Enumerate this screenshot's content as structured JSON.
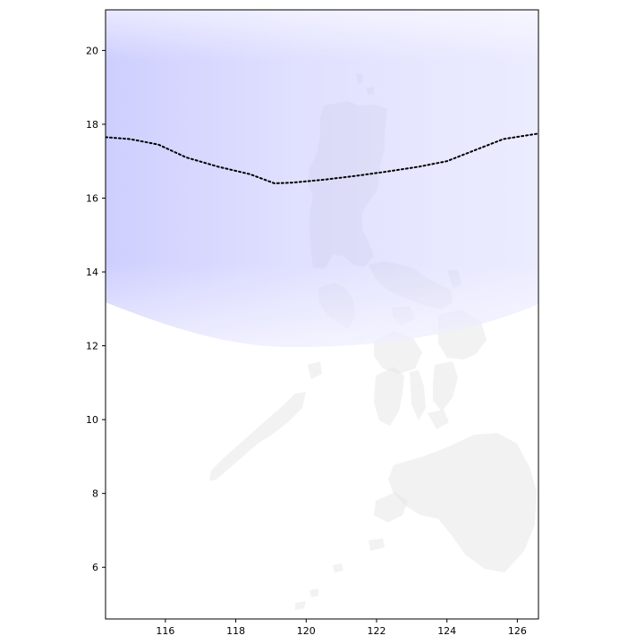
{
  "map": {
    "lon_range": [
      114.3,
      126.6
    ],
    "lat_range": [
      4.6,
      21.1
    ],
    "x_ticks": [
      "116",
      "118",
      "120",
      "122",
      "124",
      "126"
    ],
    "y_ticks": [
      "6",
      "8",
      "10",
      "12",
      "14",
      "16",
      "18",
      "20"
    ],
    "colors": {
      "shading": "#b6b6ff",
      "land": "#e8e8e8",
      "track": "#000000",
      "frame": "#000000"
    },
    "track_line_style": "dotted",
    "track": [
      [
        114.3,
        17.65
      ],
      [
        115.0,
        17.6
      ],
      [
        115.8,
        17.45
      ],
      [
        116.6,
        17.1
      ],
      [
        117.5,
        16.85
      ],
      [
        118.4,
        16.65
      ],
      [
        119.1,
        16.4
      ],
      [
        119.6,
        16.42
      ],
      [
        120.5,
        16.5
      ],
      [
        121.4,
        16.6
      ],
      [
        122.3,
        16.72
      ],
      [
        123.2,
        16.85
      ],
      [
        124.0,
        17.0
      ],
      [
        124.8,
        17.3
      ],
      [
        125.6,
        17.6
      ],
      [
        126.6,
        17.75
      ]
    ]
  }
}
